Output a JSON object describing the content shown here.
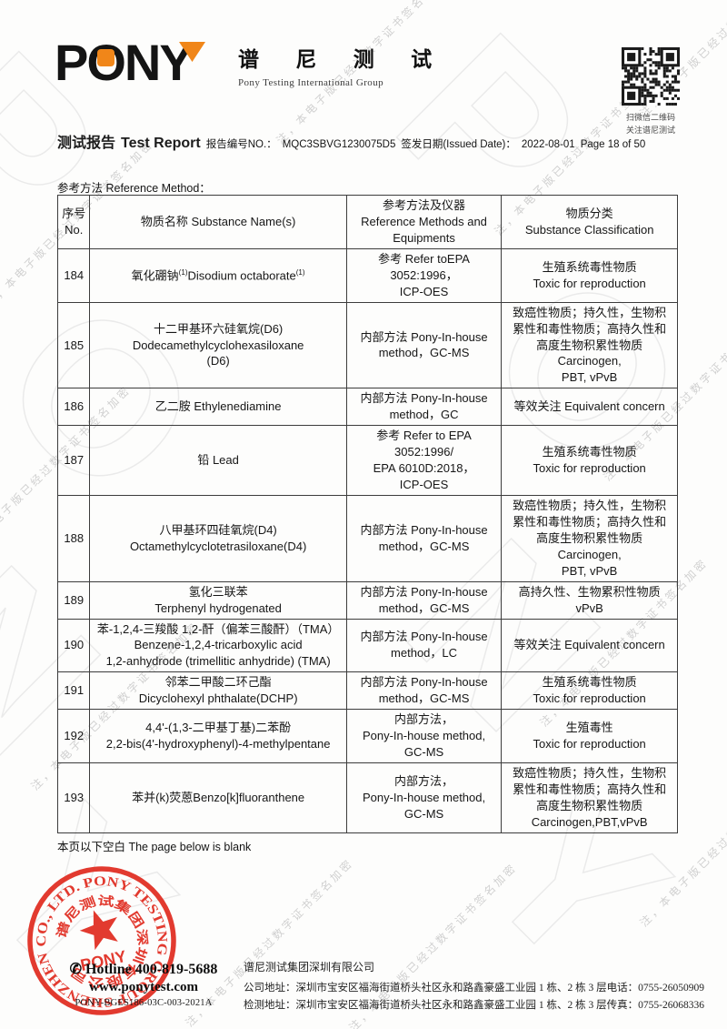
{
  "watermark": {
    "small_text": "注，本电子版已经过数字证书签名加密",
    "brand": "PONY"
  },
  "header": {
    "logo": {
      "wordmark": "PONY",
      "brand_zh": "谱 尼 测 试",
      "brand_en": "Pony Testing International Group"
    },
    "qr": {
      "caption_line1": "扫微信二维码",
      "caption_line2": "关注谱尼测试"
    }
  },
  "report_bar": {
    "title_zh": "测试报告",
    "title_en": "Test Report",
    "report_no_label": "报告编号NO.：",
    "report_no": "MQC3SBVG1230075D5",
    "issue_date_label": "签发日期(Issued Date)：",
    "issue_date_value": "2022-08-01",
    "page_info": "Page 18 of 50"
  },
  "section_label": "参考方法 Reference Method：",
  "table": {
    "headers": {
      "no": [
        "序号",
        "No."
      ],
      "name": [
        "物质名称 Substance Name(s)"
      ],
      "method": [
        "参考方法及仪器",
        "Reference Methods and",
        "Equipments"
      ],
      "classification": [
        "物质分类",
        "Substance Classification"
      ]
    },
    "rows": [
      {
        "no": "184",
        "name": [
          "氧化硼钠^(1)^Disodium octaborate^(1)^"
        ],
        "method": [
          "参考 Refer toEPA",
          "3052:1996，",
          "ICP-OES"
        ],
        "classification": [
          "生殖系统毒性物质",
          "Toxic for reproduction"
        ]
      },
      {
        "no": "185",
        "name": [
          "十二甲基环六硅氧烷(D6)",
          "Dodecamethylcyclohexasiloxane",
          "(D6)"
        ],
        "method": [
          "内部方法 Pony-In-house",
          "method，GC-MS"
        ],
        "classification": [
          "致癌性物质；持久性，生物积",
          "累性和毒性物质；高持久性和",
          "高度生物积累性物质",
          "Carcinogen,",
          "PBT, vPvB"
        ]
      },
      {
        "no": "186",
        "name": [
          "乙二胺 Ethylenediamine"
        ],
        "method": [
          "内部方法 Pony-In-house",
          "method，GC"
        ],
        "classification": [
          "等效关注 Equivalent concern"
        ]
      },
      {
        "no": "187",
        "name": [
          "铅 Lead"
        ],
        "method": [
          "参考 Refer to EPA",
          "3052:1996/",
          "EPA 6010D:2018，",
          "ICP-OES"
        ],
        "classification": [
          "生殖系统毒性物质",
          "Toxic for reproduction"
        ]
      },
      {
        "no": "188",
        "name": [
          "八甲基环四硅氧烷(D4)",
          "Octamethylcyclotetrasiloxane(D4)"
        ],
        "method": [
          "内部方法 Pony-In-house",
          "method，GC-MS"
        ],
        "classification": [
          "致癌性物质；持久性，生物积",
          "累性和毒性物质；高持久性和",
          "高度生物积累性物质",
          "Carcinogen,",
          "PBT, vPvB"
        ]
      },
      {
        "no": "189",
        "name": [
          "氢化三联苯",
          "Terphenyl hydrogenated"
        ],
        "method": [
          "内部方法 Pony-In-house",
          "method，GC-MS"
        ],
        "classification": [
          "高持久性、生物累积性物质",
          "vPvB"
        ]
      },
      {
        "no": "190",
        "name": [
          "苯-1,2,4-三羧酸 1,2-酐（偏苯三酸酐）（TMA）",
          "Benzene-1,2,4-tricarboxylic acid",
          "1,2-anhydrode (trimellitic anhydride) (TMA)"
        ],
        "method": [
          "内部方法 Pony-In-house",
          "method，LC"
        ],
        "classification": [
          "等效关注 Equivalent concern"
        ]
      },
      {
        "no": "191",
        "name": [
          "邻苯二甲酸二环己酯",
          "Dicyclohexyl phthalate(DCHP)"
        ],
        "method": [
          "内部方法 Pony-In-house",
          "method，GC-MS"
        ],
        "classification": [
          "生殖系统毒性物质",
          "Toxic for reproduction"
        ]
      },
      {
        "no": "192",
        "name": [
          "4,4'-(1,3-二甲基丁基)二苯酚",
          "2,2-bis(4'-hydroxyphenyl)-4-methylpentane"
        ],
        "method": [
          "内部方法，",
          "Pony-In-house method,",
          "GC-MS"
        ],
        "classification": [
          "生殖毒性",
          "Toxic for reproduction"
        ]
      },
      {
        "no": "193",
        "name": [
          "苯并(k)荧蒽Benzo[k]fluoranthene"
        ],
        "method": [
          "内部方法，",
          "Pony-In-house method,",
          "GC-MS"
        ],
        "classification": [
          "致癌性物质；持久性，生物积",
          "累性和毒性物质；高持久性和",
          "高度生物积累性物质",
          "Carcinogen,PBT,vPvB"
        ]
      }
    ]
  },
  "blank_note": "本页以下空白 The page below is blank",
  "footer": {
    "stamp": {
      "ring_text": "CO., LTD.  PONY  TESTING  GROUP  SHENZHEN",
      "inner_zh": "谱尼测试集团深圳有限公司",
      "center_word": "PONY"
    },
    "hotline_icon": "✆",
    "hotline": "Hotline 400-819-5688",
    "website": "www.ponytest.com",
    "doc_code": "PONY-BGES186-03C-003-2021A",
    "company_name": "谱尼测试集团深圳有限公司",
    "address_row1": {
      "label": "公司地址：",
      "value": "深圳市宝安区福海街道桥头社区永和路鑫豪盛工业园 1 栋、2 栋 3 层",
      "contact_label": "电话：",
      "contact": "0755-26050909"
    },
    "address_row2": {
      "label": "检测地址：",
      "value": "深圳市宝安区福海街道桥头社区永和路鑫豪盛工业园 1 栋、2 栋 3 层",
      "contact_label": "传真：",
      "contact": "0755-26068336"
    }
  },
  "colors": {
    "accent_orange": "#f08619",
    "stamp_red": "#e02a1e",
    "border": "#3c3c3c"
  }
}
